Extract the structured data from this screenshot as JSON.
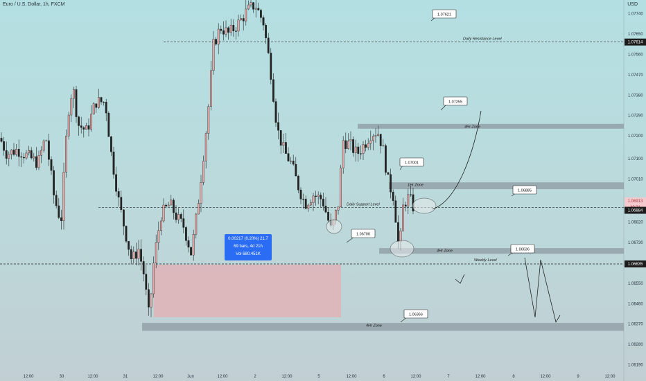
{
  "header": {
    "title": "Euro / U.S. Dollar, 1h, FXCM",
    "currency": "USD"
  },
  "chart_data": {
    "type": "candlestick",
    "title": "Euro / U.S. Dollar, 1h, FXCM",
    "ylim": [
      1.06195,
      1.07775
    ],
    "y_ticks": [
      "1.07740",
      "1.07650",
      "1.07560",
      "1.07470",
      "1.07380",
      "1.07290",
      "1.07200",
      "1.07100",
      "1.07010",
      "1.06910",
      "1.06820",
      "1.06730",
      "1.06640",
      "1.06550",
      "1.06460",
      "1.06370",
      "1.06280",
      "1.06190"
    ],
    "x_ticks": [
      "12:00",
      "30",
      "12:00",
      "31",
      "12:00",
      "Jun",
      "12:00",
      "2",
      "12:00",
      "5",
      "12:00",
      "6",
      "12:00",
      "7",
      "12:00",
      "8",
      "12:00",
      "9",
      "12:00"
    ],
    "price_tags": [
      {
        "label": "1.07614",
        "kind": "dark"
      },
      {
        "label": "1.06913",
        "kind": "pink"
      },
      {
        "label": "40:31",
        "kind": "pink"
      },
      {
        "label": "1.06884",
        "kind": "dark"
      },
      {
        "label": "1.06635",
        "kind": "dark"
      }
    ],
    "levels": [
      {
        "name": "Daily Resistance Level",
        "price": 1.07614
      },
      {
        "name": "Daily Support Level",
        "price": 1.06884
      },
      {
        "name": "Weekly Level",
        "price": 1.06635
      }
    ],
    "zones": [
      {
        "label": "4Hr Zone",
        "price_top": 1.07253,
        "price_bottom": 1.07235
      },
      {
        "label": "1Hr Zone",
        "price_top": 1.06995,
        "price_bottom": 1.06965
      },
      {
        "label": "4Hr Zone",
        "price_top": 1.06705,
        "price_bottom": 1.0668
      },
      {
        "label": "4Hr Zone",
        "price_top": 1.06375,
        "price_bottom": 1.0634
      }
    ],
    "callouts": [
      "1.07621",
      "1.07255",
      "1.07001",
      "1.06885",
      "1.06700",
      "1.06636",
      "1.06366"
    ],
    "measure_tool": {
      "line1": "0.00217 (0.20%) 21.7",
      "line2": "69 bars, 4d 21h",
      "line3": "Vol 680.451K"
    }
  }
}
